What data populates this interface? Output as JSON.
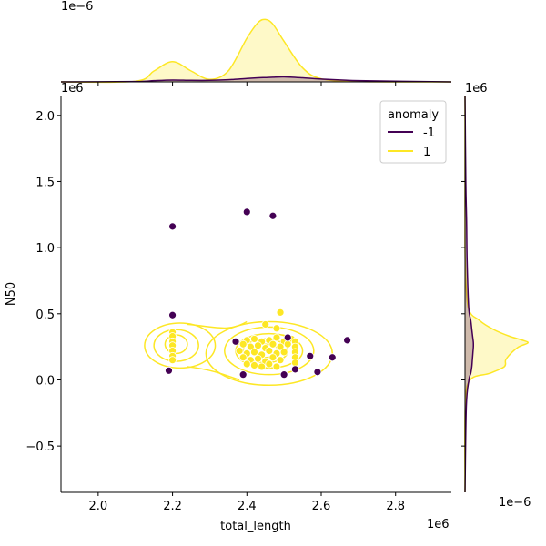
{
  "chart_data": {
    "type": "scatter",
    "xlabel": "total_length",
    "ylabel": "N50",
    "xlim": [
      1.9,
      2.95
    ],
    "ylim": [
      -0.85,
      2.15
    ],
    "x_offset_label": "1e6",
    "y_offset_label": "1e6",
    "top_marginal_offset_label": "1e−6",
    "right_marginal_offset_label": "1e6",
    "right_marginal_bottom_offset_label": "1e−6",
    "x_ticks": [
      {
        "value": 2.0,
        "label": "2.0"
      },
      {
        "value": 2.2,
        "label": "2.2"
      },
      {
        "value": 2.4,
        "label": "2.4"
      },
      {
        "value": 2.6,
        "label": "2.6"
      },
      {
        "value": 2.8,
        "label": "2.8"
      }
    ],
    "y_ticks": [
      {
        "value": -0.5,
        "label": "−0.5"
      },
      {
        "value": 0.0,
        "label": "0.0"
      },
      {
        "value": 0.5,
        "label": "0.5"
      },
      {
        "value": 1.0,
        "label": "1.0"
      },
      {
        "value": 1.5,
        "label": "1.5"
      },
      {
        "value": 2.0,
        "label": "2.0"
      }
    ],
    "legend": {
      "title": "anomaly",
      "placement": "top-right",
      "entries": [
        {
          "label": "-1",
          "color": "#440154"
        },
        {
          "label": "1",
          "color": "#fde725"
        }
      ]
    },
    "series": [
      {
        "name": "-1",
        "color": "#440154",
        "points": [
          [
            2.2,
            1.16
          ],
          [
            2.4,
            1.27
          ],
          [
            2.47,
            1.24
          ],
          [
            2.2,
            0.49
          ],
          [
            2.37,
            0.29
          ],
          [
            2.51,
            0.32
          ],
          [
            2.67,
            0.3
          ],
          [
            2.57,
            0.18
          ],
          [
            2.63,
            0.17
          ],
          [
            2.53,
            0.08
          ],
          [
            2.59,
            0.06
          ],
          [
            2.5,
            0.04
          ],
          [
            2.39,
            0.04
          ],
          [
            2.19,
            0.07
          ]
        ]
      },
      {
        "name": "1",
        "color": "#fde725",
        "points": [
          [
            2.2,
            0.36
          ],
          [
            2.2,
            0.33
          ],
          [
            2.2,
            0.29
          ],
          [
            2.2,
            0.26
          ],
          [
            2.2,
            0.22
          ],
          [
            2.2,
            0.18
          ],
          [
            2.2,
            0.15
          ],
          [
            2.49,
            0.51
          ],
          [
            2.45,
            0.42
          ],
          [
            2.48,
            0.39
          ],
          [
            2.4,
            0.3
          ],
          [
            2.42,
            0.31
          ],
          [
            2.44,
            0.29
          ],
          [
            2.46,
            0.3
          ],
          [
            2.48,
            0.32
          ],
          [
            2.5,
            0.29
          ],
          [
            2.52,
            0.31
          ],
          [
            2.39,
            0.27
          ],
          [
            2.41,
            0.25
          ],
          [
            2.43,
            0.26
          ],
          [
            2.45,
            0.24
          ],
          [
            2.47,
            0.27
          ],
          [
            2.49,
            0.25
          ],
          [
            2.51,
            0.27
          ],
          [
            2.38,
            0.22
          ],
          [
            2.4,
            0.2
          ],
          [
            2.42,
            0.21
          ],
          [
            2.44,
            0.19
          ],
          [
            2.46,
            0.22
          ],
          [
            2.48,
            0.2
          ],
          [
            2.5,
            0.21
          ],
          [
            2.39,
            0.17
          ],
          [
            2.41,
            0.15
          ],
          [
            2.43,
            0.16
          ],
          [
            2.45,
            0.14
          ],
          [
            2.47,
            0.17
          ],
          [
            2.49,
            0.15
          ],
          [
            2.4,
            0.12
          ],
          [
            2.42,
            0.11
          ],
          [
            2.44,
            0.1
          ],
          [
            2.46,
            0.12
          ],
          [
            2.48,
            0.1
          ],
          [
            2.53,
            0.29
          ],
          [
            2.53,
            0.25
          ],
          [
            2.53,
            0.21
          ],
          [
            2.53,
            0.17
          ],
          [
            2.53,
            0.13
          ]
        ]
      }
    ],
    "top_marginal": {
      "type": "area",
      "x": [
        1.9,
        2.1,
        2.15,
        2.2,
        2.25,
        2.3,
        2.35,
        2.4,
        2.43,
        2.45,
        2.47,
        2.5,
        2.55,
        2.6,
        2.7,
        2.95
      ],
      "series": [
        {
          "name": "1",
          "values": [
            0,
            0.02,
            0.35,
            0.65,
            0.35,
            0.08,
            0.35,
            1.4,
            1.9,
            2.0,
            1.85,
            1.3,
            0.45,
            0.1,
            0.01,
            0
          ]
        },
        {
          "name": "-1",
          "values": [
            0,
            0.01,
            0.04,
            0.06,
            0.05,
            0.05,
            0.07,
            0.11,
            0.13,
            0.14,
            0.15,
            0.16,
            0.13,
            0.09,
            0.04,
            0
          ]
        }
      ]
    },
    "right_marginal": {
      "type": "area",
      "y": [
        -0.85,
        -0.2,
        0.0,
        0.05,
        0.1,
        0.15,
        0.2,
        0.25,
        0.28,
        0.3,
        0.33,
        0.38,
        0.45,
        0.55,
        0.9,
        1.2,
        1.5,
        2.15
      ],
      "series": [
        {
          "name": "1",
          "values": [
            0,
            0.01,
            0.2,
            0.95,
            1.5,
            1.55,
            1.75,
            2.05,
            2.4,
            2.2,
            1.7,
            1.1,
            0.55,
            0.12,
            0.01,
            0,
            0,
            0
          ]
        },
        {
          "name": "-1",
          "values": [
            0,
            0.05,
            0.15,
            0.22,
            0.26,
            0.28,
            0.3,
            0.32,
            0.32,
            0.31,
            0.29,
            0.26,
            0.22,
            0.14,
            0.08,
            0.06,
            0.03,
            0
          ]
        }
      ]
    }
  }
}
